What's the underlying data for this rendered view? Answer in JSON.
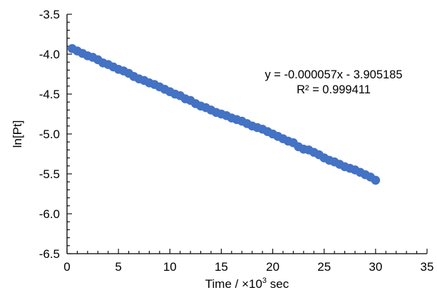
{
  "chart_data": {
    "type": "scatter",
    "title": "",
    "xlabel_prefix": "Time / ×10",
    "xlabel_sup": "3",
    "xlabel_suffix": " sec",
    "ylabel": "ln[Pt]",
    "xlim": [
      0,
      35
    ],
    "ylim": [
      -6.5,
      -3.5
    ],
    "x_ticks": [
      0,
      5,
      10,
      15,
      20,
      25,
      30,
      35
    ],
    "x_tick_labels": [
      "0",
      "5",
      "10",
      "15",
      "20",
      "25",
      "30",
      "35"
    ],
    "y_ticks": [
      -3.5,
      -4.0,
      -4.5,
      -5.0,
      -5.5,
      -6.0,
      -6.5
    ],
    "y_tick_labels": [
      "-3.5",
      "-4.0",
      "-4.5",
      "-5.0",
      "-5.5",
      "-6.0",
      "-6.5"
    ],
    "grid": false,
    "legend": "none",
    "marker_color": "#4472C4",
    "annotations": [
      "y = -0.000057x - 3.905185",
      "R² = 0.999411"
    ],
    "series": [
      {
        "x": [
          0.5,
          1.0,
          1.5,
          2.0,
          2.5,
          3.0,
          3.5,
          4.0,
          4.5,
          5.0,
          5.5,
          6.0,
          6.5,
          7.0,
          7.5,
          8.0,
          8.5,
          9.0,
          9.5,
          10.0,
          10.5,
          11.0,
          11.5,
          12.0,
          12.5,
          13.0,
          13.5,
          14.0,
          14.5,
          15.0,
          15.5,
          16.0,
          16.5,
          17.0,
          17.5,
          18.0,
          18.5,
          19.0,
          19.5,
          20.0,
          20.5,
          21.0,
          21.5,
          22.0,
          22.5,
          23.0,
          23.5,
          24.0,
          24.5,
          25.0,
          25.5,
          26.0,
          26.5,
          27.0,
          27.5,
          28.0,
          28.5,
          29.0,
          29.5,
          30.0
        ],
        "y": [
          -3.93,
          -3.96,
          -3.99,
          -4.02,
          -4.04,
          -4.07,
          -4.11,
          -4.13,
          -4.16,
          -4.19,
          -4.21,
          -4.24,
          -4.28,
          -4.31,
          -4.33,
          -4.36,
          -4.38,
          -4.41,
          -4.44,
          -4.47,
          -4.5,
          -4.52,
          -4.56,
          -4.58,
          -4.62,
          -4.65,
          -4.67,
          -4.7,
          -4.73,
          -4.75,
          -4.77,
          -4.8,
          -4.82,
          -4.84,
          -4.87,
          -4.9,
          -4.92,
          -4.94,
          -4.97,
          -5.0,
          -5.03,
          -5.06,
          -5.09,
          -5.11,
          -5.16,
          -5.19,
          -5.2,
          -5.23,
          -5.26,
          -5.3,
          -5.33,
          -5.35,
          -5.38,
          -5.41,
          -5.43,
          -5.45,
          -5.48,
          -5.51,
          -5.54,
          -5.58
        ]
      }
    ]
  }
}
